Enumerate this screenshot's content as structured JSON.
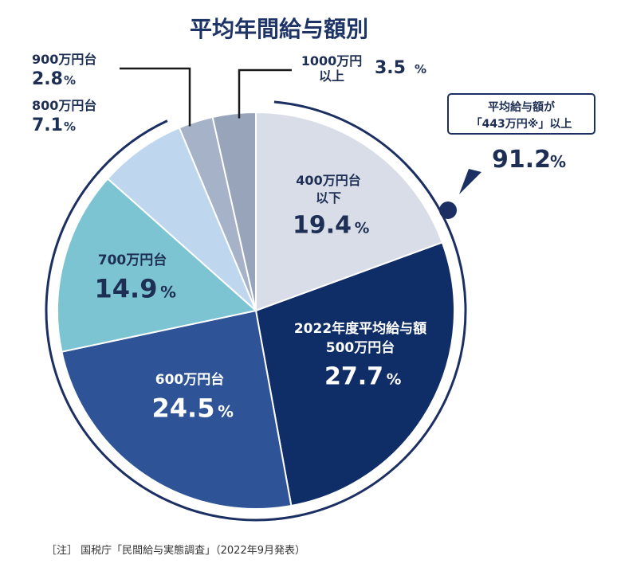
{
  "chart_data": {
    "type": "pie",
    "title": "平均年間給与額別",
    "slices": [
      {
        "label": "400万円台以下",
        "label_lines": [
          "400万円台",
          "以下"
        ],
        "value": 19.4,
        "value_text": "19.4",
        "color": "#d8dde7",
        "text_color": "#1e2f55",
        "placement": "inside"
      },
      {
        "label": "2022年度平均給与額 500万円台",
        "label_lines": [
          "2022年度平均給与額",
          "500万円台"
        ],
        "value": 27.7,
        "value_text": "27.7",
        "color": "#0f2d66",
        "text_color": "#ffffff",
        "placement": "inside"
      },
      {
        "label": "600万円台",
        "label_lines": [
          "600万円台"
        ],
        "value": 24.5,
        "value_text": "24.5",
        "color": "#2e5497",
        "text_color": "#ffffff",
        "placement": "inside"
      },
      {
        "label": "700万円台",
        "label_lines": [
          "700万円台"
        ],
        "value": 14.9,
        "value_text": "14.9",
        "color": "#7dc4d2",
        "text_color": "#1e2f55",
        "placement": "inside"
      },
      {
        "label": "800万円台",
        "label_lines": [
          "800万円台"
        ],
        "value": 7.1,
        "value_text": "7.1",
        "color": "#bfd7ee",
        "text_color": "#1e2f55",
        "placement": "outside"
      },
      {
        "label": "900万円台",
        "label_lines": [
          "900万円台"
        ],
        "value": 2.8,
        "value_text": "2.8",
        "color": "#a6b2c8",
        "text_color": "#1e2f55",
        "placement": "outside"
      },
      {
        "label": "1000万円以上",
        "label_lines": [
          "1000万円",
          "以上"
        ],
        "value": 3.5,
        "value_text": "3.5",
        "color": "#98a4ba",
        "text_color": "#1e2f55",
        "placement": "outside"
      }
    ],
    "unit": "%",
    "callout": {
      "lines": [
        "平均給与額が",
        "「443万円※」以上"
      ],
      "value_text": "91.2",
      "unit": "%"
    },
    "note": "［注］ 国税庁「民間給与実態調査」（2022年9月発表）"
  },
  "colors": {
    "title": "#1e3466",
    "ring": "#1b2f63",
    "dark_text": "#1e2f55"
  }
}
